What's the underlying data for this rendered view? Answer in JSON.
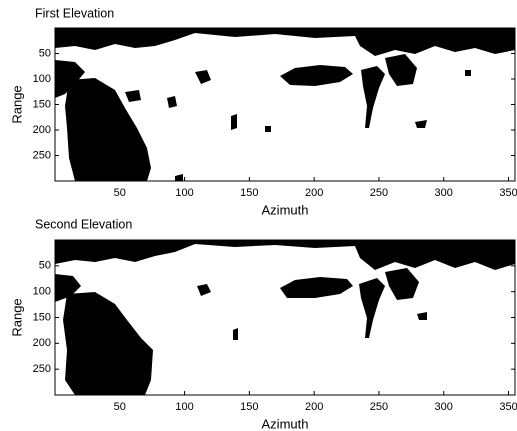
{
  "chart_data": [
    {
      "type": "image",
      "title": "First Elevation",
      "xlabel": "Azimuth",
      "ylabel": "Range",
      "xlim": [
        0,
        355
      ],
      "xticks": [
        50,
        100,
        150,
        200,
        250,
        300,
        350
      ],
      "ylim": [
        300,
        0
      ],
      "yticks": [
        50,
        100,
        150,
        200,
        250
      ]
    },
    {
      "type": "image",
      "title": "Second Elevation",
      "xlabel": "Azimuth",
      "ylabel": "Range",
      "xlim": [
        0,
        355
      ],
      "xticks": [
        50,
        100,
        150,
        200,
        250,
        300,
        350
      ],
      "ylim": [
        300,
        0
      ],
      "yticks": [
        50,
        100,
        150,
        200,
        250
      ]
    }
  ]
}
